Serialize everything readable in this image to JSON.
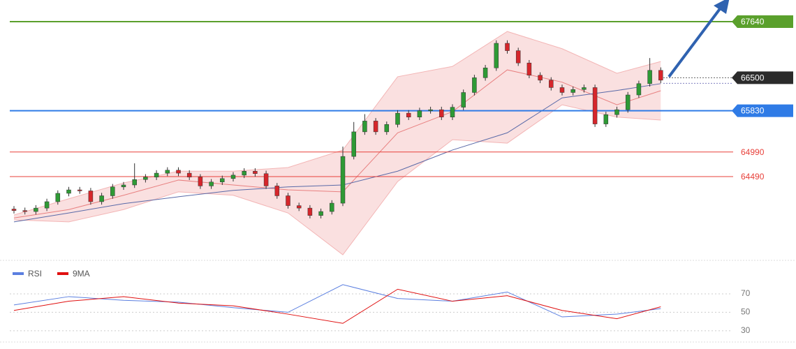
{
  "chart_data": {
    "type": "candlestick",
    "ylim": [
      62830,
      68080
    ],
    "open": [
      63830,
      63800,
      63780,
      63850,
      63980,
      64150,
      64220,
      64200,
      63980,
      64100,
      64280,
      64320,
      64430,
      64480,
      64560,
      64620,
      64560,
      64480,
      64300,
      64380,
      64450,
      64520,
      64600,
      64550,
      64300,
      64100,
      63900,
      63850,
      63700,
      63780,
      63950,
      64900,
      65400,
      65620,
      65400,
      65550,
      65780,
      65700,
      65830,
      65850,
      65700,
      65900,
      66200,
      66500,
      66700,
      67200,
      67050,
      66800,
      66550,
      66450,
      66300,
      66200,
      66260,
      66300,
      65560,
      65750,
      65850,
      66150,
      66380,
      66650
    ],
    "high": [
      63890,
      63860,
      63910,
      64040,
      64210,
      64280,
      64280,
      64260,
      64160,
      64340,
      64380,
      64760,
      64540,
      64620,
      64680,
      64680,
      64620,
      64540,
      64440,
      64510,
      64580,
      64660,
      64660,
      64610,
      64360,
      64160,
      63960,
      63910,
      63840,
      64010,
      65100,
      65600,
      65760,
      65680,
      65610,
      65840,
      65840,
      65890,
      65910,
      65910,
      65960,
      66260,
      66560,
      66760,
      67260,
      67260,
      67110,
      66860,
      66610,
      66510,
      66360,
      66320,
      66360,
      66360,
      65810,
      65910,
      66210,
      66440,
      66900,
      66710
    ],
    "low": [
      63740,
      63720,
      63720,
      63790,
      63920,
      64090,
      64140,
      63920,
      63920,
      64040,
      64220,
      64260,
      64370,
      64420,
      64500,
      64500,
      64420,
      64240,
      64240,
      64320,
      64390,
      64460,
      64490,
      64240,
      64040,
      63840,
      63790,
      63640,
      63640,
      63720,
      63890,
      64840,
      65340,
      65340,
      65340,
      65490,
      65640,
      65640,
      65770,
      65640,
      65640,
      65840,
      66140,
      66440,
      66640,
      66990,
      66740,
      66490,
      66390,
      66240,
      66140,
      66140,
      66200,
      65500,
      65500,
      65690,
      65790,
      66090,
      66320,
      66390
    ],
    "close": [
      63800,
      63780,
      63850,
      63980,
      64150,
      64220,
      64200,
      63980,
      64100,
      64280,
      64320,
      64430,
      64480,
      64560,
      64620,
      64560,
      64480,
      64300,
      64380,
      64450,
      64520,
      64600,
      64550,
      64300,
      64100,
      63900,
      63850,
      63700,
      63780,
      63950,
      64900,
      65400,
      65620,
      65400,
      65550,
      65780,
      65700,
      65830,
      65850,
      65700,
      65900,
      66200,
      66500,
      66700,
      67200,
      67050,
      66800,
      66550,
      66450,
      66300,
      66200,
      66260,
      66300,
      65560,
      65750,
      65850,
      66150,
      66380,
      66650,
      66450
    ],
    "indicator_x": [
      0,
      5,
      10,
      15,
      20,
      25,
      30,
      35,
      40,
      45,
      50,
      55,
      59
    ],
    "band_upper": [
      63710,
      64040,
      64360,
      64600,
      64600,
      64675,
      65030,
      66520,
      66730,
      67440,
      67090,
      66590,
      66830
    ],
    "band_lower": [
      63610,
      63570,
      63820,
      64180,
      64110,
      63750,
      62900,
      64390,
      65240,
      65170,
      65950,
      65700,
      65640
    ],
    "ma_fast": [
      63650,
      63820,
      64110,
      64420,
      64320,
      64220,
      64180,
      65380,
      65810,
      66660,
      66410,
      65950,
      66235
    ],
    "ma_slow": [
      63570,
      63750,
      63940,
      64080,
      64210,
      64280,
      64320,
      64600,
      65030,
      65380,
      66090,
      66240,
      66380
    ],
    "levels": [
      {
        "value": 67640,
        "color": "#5aa02c"
      },
      {
        "value": 65830,
        "color": "#2f7be6"
      },
      {
        "value": 64990,
        "color": "#e8403a"
      },
      {
        "value": 64490,
        "color": "#e8403a"
      }
    ],
    "current_price": 66500,
    "rsi": {
      "ylim": [
        14,
        101
      ],
      "yticks": [
        30,
        50,
        70
      ],
      "series": [
        {
          "name": "RSI",
          "color": "#5b7fe0",
          "values": [
            58,
            67,
            63,
            61,
            55,
            50,
            80,
            65,
            62,
            72,
            45,
            48,
            54
          ]
        },
        {
          "name": "9MA",
          "color": "#e01010",
          "values": [
            52,
            62,
            67,
            60,
            57,
            48,
            38,
            75,
            62,
            68,
            52,
            43,
            56
          ]
        }
      ]
    }
  }
}
